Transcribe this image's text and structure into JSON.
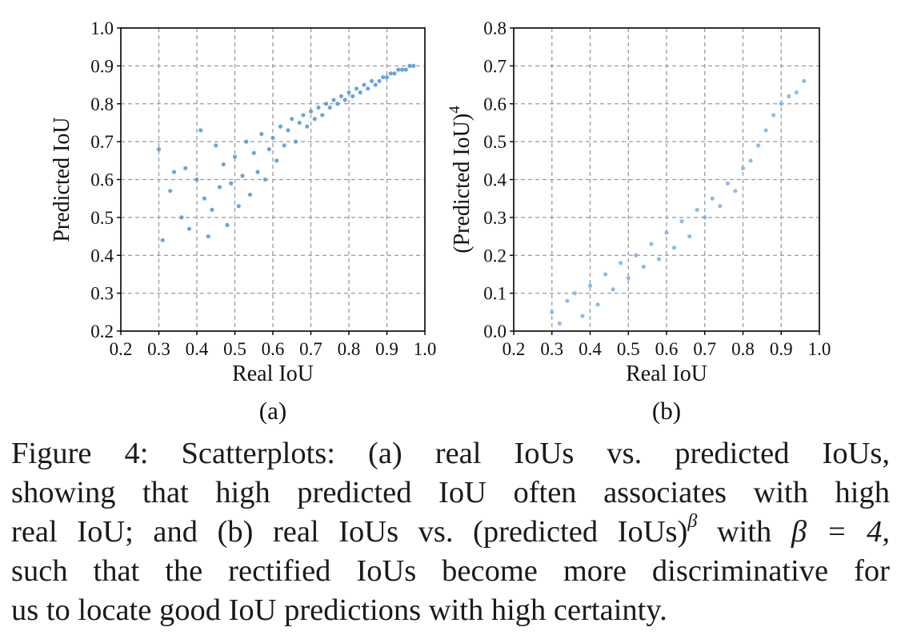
{
  "chart_data": [
    {
      "type": "scatter",
      "xlabel": "Real IoU",
      "ylabel": "Predicted IoU",
      "xlim": [
        0.2,
        1.0
      ],
      "ylim": [
        0.2,
        1.0
      ],
      "x_ticks": [
        "0.2",
        "0.3",
        "0.4",
        "0.5",
        "0.6",
        "0.7",
        "0.8",
        "0.9",
        "1.0"
      ],
      "y_ticks": [
        "0.2",
        "0.3",
        "0.4",
        "0.5",
        "0.6",
        "0.7",
        "0.8",
        "0.9",
        "1.0"
      ],
      "grid": true,
      "grid_style": "dashed",
      "sublabel": "(a)",
      "point_color": "#5b9bd5",
      "series": [
        {
          "x": [
            0.3,
            0.31,
            0.33,
            0.34,
            0.36,
            0.37,
            0.38,
            0.4,
            0.41,
            0.42,
            0.43,
            0.44,
            0.45,
            0.46,
            0.47,
            0.48,
            0.49,
            0.5,
            0.51,
            0.52,
            0.53,
            0.54,
            0.55,
            0.56,
            0.57,
            0.58,
            0.59,
            0.6,
            0.61,
            0.62,
            0.63,
            0.64,
            0.65,
            0.66,
            0.67,
            0.68,
            0.69,
            0.7,
            0.71,
            0.72,
            0.73,
            0.74,
            0.75,
            0.76,
            0.77,
            0.78,
            0.79,
            0.8,
            0.81,
            0.82,
            0.83,
            0.84,
            0.85,
            0.86,
            0.87,
            0.88,
            0.89,
            0.9,
            0.91,
            0.92,
            0.93,
            0.94,
            0.95,
            0.96,
            0.97
          ],
          "y": [
            0.68,
            0.44,
            0.57,
            0.62,
            0.5,
            0.63,
            0.47,
            0.6,
            0.73,
            0.55,
            0.45,
            0.52,
            0.69,
            0.58,
            0.64,
            0.48,
            0.59,
            0.66,
            0.53,
            0.61,
            0.7,
            0.56,
            0.67,
            0.62,
            0.72,
            0.6,
            0.68,
            0.71,
            0.65,
            0.74,
            0.69,
            0.73,
            0.76,
            0.7,
            0.75,
            0.77,
            0.74,
            0.78,
            0.76,
            0.79,
            0.77,
            0.8,
            0.79,
            0.81,
            0.8,
            0.82,
            0.81,
            0.83,
            0.82,
            0.84,
            0.83,
            0.85,
            0.84,
            0.86,
            0.85,
            0.86,
            0.87,
            0.87,
            0.88,
            0.88,
            0.89,
            0.89,
            0.89,
            0.9,
            0.9
          ]
        }
      ]
    },
    {
      "type": "scatter",
      "xlabel": "Real IoU",
      "ylabel": "(Predicted IoU)",
      "ylabel_exponent": "4",
      "xlim": [
        0.2,
        1.0
      ],
      "ylim": [
        0.0,
        0.8
      ],
      "x_ticks": [
        "0.2",
        "0.3",
        "0.4",
        "0.5",
        "0.6",
        "0.7",
        "0.8",
        "0.9",
        "1.0"
      ],
      "y_ticks": [
        "0.0",
        "0.1",
        "0.2",
        "0.3",
        "0.4",
        "0.5",
        "0.6",
        "0.7",
        "0.8"
      ],
      "grid": true,
      "grid_style": "dashed",
      "sublabel": "(b)",
      "point_color": "#84b4e2",
      "series": [
        {
          "x": [
            0.3,
            0.32,
            0.34,
            0.36,
            0.38,
            0.4,
            0.42,
            0.44,
            0.46,
            0.48,
            0.5,
            0.52,
            0.54,
            0.56,
            0.58,
            0.6,
            0.62,
            0.64,
            0.66,
            0.68,
            0.7,
            0.72,
            0.74,
            0.76,
            0.78,
            0.8,
            0.82,
            0.84,
            0.86,
            0.88,
            0.9,
            0.92,
            0.94,
            0.96
          ],
          "y": [
            0.05,
            0.02,
            0.08,
            0.1,
            0.04,
            0.12,
            0.07,
            0.15,
            0.11,
            0.18,
            0.14,
            0.2,
            0.17,
            0.23,
            0.19,
            0.26,
            0.22,
            0.29,
            0.25,
            0.32,
            0.3,
            0.35,
            0.33,
            0.39,
            0.37,
            0.43,
            0.45,
            0.49,
            0.53,
            0.57,
            0.6,
            0.62,
            0.63,
            0.66
          ]
        }
      ]
    }
  ],
  "caption": {
    "line1": "Figure 4: Scatterplots: (a) real IoUs vs. predicted IoUs,",
    "line2": "showing that high predicted IoU often associates with high",
    "line3_a": "real IoU; and (b) real IoUs vs. (predicted IoUs)",
    "line3_sup": "β",
    "line3_b": " with ",
    "line3_math": "β = 4,",
    "line4": "such that the rectified IoUs become more discriminative for",
    "line5": "us to locate good IoU predictions with high certainty."
  }
}
